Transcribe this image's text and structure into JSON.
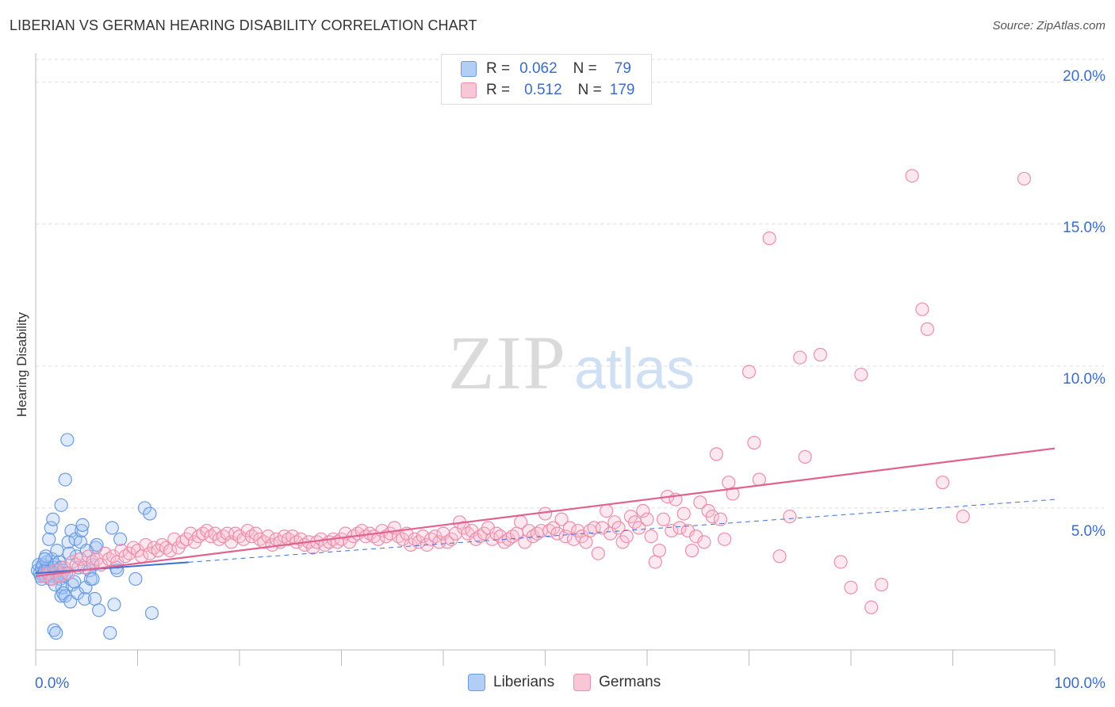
{
  "title": "LIBERIAN VS GERMAN HEARING DISABILITY CORRELATION CHART",
  "source": "Source: ZipAtlas.com",
  "watermark": {
    "zip": "ZIP",
    "atlas": "atlas"
  },
  "legend": {
    "rows": [
      {
        "r_label": "R =",
        "r_value": "0.062",
        "n_label": "N =",
        "n_value": "79",
        "fill": "#b3cef5",
        "stroke": "#6a9ae0"
      },
      {
        "r_label": "R =",
        "r_value": "0.512",
        "n_label": "N =",
        "n_value": "179",
        "fill": "#f9c6d6",
        "stroke": "#ea8fab"
      }
    ]
  },
  "bottom_legend": [
    {
      "label": "Liberians",
      "fill": "#b3cef5",
      "stroke": "#6a9ae0"
    },
    {
      "label": "Germans",
      "fill": "#f9c6d6",
      "stroke": "#ea8fab"
    }
  ],
  "colors": {
    "liberian": "#6a9ae0",
    "liberian_fill": "rgba(160,195,245,0.35)",
    "liberian_line": "#3d6fd4",
    "german": "#ea8fab",
    "german_fill": "rgba(248,190,210,0.35)",
    "german_line": "#e0628e",
    "grid": "#dcdcdc",
    "tick_label": "#3a6cc8"
  },
  "chart_data": {
    "type": "scatter",
    "title": "LIBERIAN VS GERMAN HEARING DISABILITY CORRELATION CHART",
    "xlabel": "",
    "ylabel": "Hearing Disability",
    "xlim": [
      0,
      100
    ],
    "ylim": [
      0,
      20.8
    ],
    "x_tick_labels": [
      "0.0%",
      "100.0%"
    ],
    "y_ticks": [
      5,
      10,
      15,
      20
    ],
    "y_tick_labels": [
      "5.0%",
      "10.0%",
      "15.0%",
      "20.0%"
    ],
    "grid": "horizontal dashed",
    "series": [
      {
        "name": "Liberians",
        "r": 0.062,
        "n": 79,
        "trend": {
          "x": [
            0,
            100
          ],
          "y": [
            2.7,
            5.3
          ]
        },
        "trend_solid_until": 15,
        "points": [
          [
            0.2,
            2.8
          ],
          [
            0.3,
            3.0
          ],
          [
            0.4,
            2.7
          ],
          [
            0.5,
            2.6
          ],
          [
            0.6,
            2.9
          ],
          [
            0.7,
            3.0
          ],
          [
            0.8,
            2.7
          ],
          [
            0.9,
            2.8
          ],
          [
            1.0,
            2.6
          ],
          [
            1.1,
            3.1
          ],
          [
            1.2,
            2.9
          ],
          [
            1.3,
            2.7
          ],
          [
            1.4,
            2.5
          ],
          [
            1.5,
            2.8
          ],
          [
            1.6,
            3.2
          ],
          [
            1.7,
            2.6
          ],
          [
            1.8,
            2.9
          ],
          [
            1.9,
            3.0
          ],
          [
            2.0,
            2.7
          ],
          [
            2.1,
            2.6
          ],
          [
            2.2,
            2.8
          ],
          [
            2.3,
            3.1
          ],
          [
            2.4,
            2.5
          ],
          [
            2.5,
            2.9
          ],
          [
            2.6,
            2.7
          ],
          [
            2.7,
            2.8
          ],
          [
            2.8,
            2.6
          ],
          [
            3.0,
            2.7
          ],
          [
            0.6,
            2.5
          ],
          [
            1.0,
            3.3
          ],
          [
            1.5,
            4.3
          ],
          [
            1.7,
            4.6
          ],
          [
            2.1,
            3.5
          ],
          [
            2.5,
            1.9
          ],
          [
            2.6,
            2.2
          ],
          [
            2.7,
            2.0
          ],
          [
            2.9,
            1.9
          ],
          [
            2.5,
            5.1
          ],
          [
            2.9,
            6.0
          ],
          [
            3.1,
            7.4
          ],
          [
            3.2,
            3.8
          ],
          [
            3.4,
            1.7
          ],
          [
            3.5,
            4.2
          ],
          [
            3.6,
            2.3
          ],
          [
            3.8,
            2.4
          ],
          [
            3.9,
            3.9
          ],
          [
            4.0,
            3.3
          ],
          [
            4.1,
            2.0
          ],
          [
            4.2,
            2.9
          ],
          [
            4.4,
            3.8
          ],
          [
            4.5,
            4.2
          ],
          [
            4.6,
            4.4
          ],
          [
            4.8,
            1.8
          ],
          [
            4.9,
            2.2
          ],
          [
            5.0,
            3.5
          ],
          [
            5.3,
            2.8
          ],
          [
            5.4,
            2.5
          ],
          [
            5.6,
            3.0
          ],
          [
            5.6,
            2.5
          ],
          [
            5.8,
            1.8
          ],
          [
            5.9,
            3.6
          ],
          [
            6.0,
            3.7
          ],
          [
            6.2,
            1.4
          ],
          [
            7.3,
            0.6
          ],
          [
            7.5,
            4.3
          ],
          [
            7.7,
            1.6
          ],
          [
            7.9,
            2.9
          ],
          [
            8.0,
            2.8
          ],
          [
            8.3,
            3.9
          ],
          [
            9.8,
            2.5
          ],
          [
            10.7,
            5.0
          ],
          [
            11.2,
            4.8
          ],
          [
            11.4,
            1.3
          ],
          [
            1.8,
            0.7
          ],
          [
            2.0,
            0.6
          ],
          [
            1.3,
            3.9
          ],
          [
            0.9,
            3.2
          ],
          [
            1.9,
            2.3
          ],
          [
            3.3,
            3.4
          ]
        ]
      },
      {
        "name": "Germans",
        "r": 0.512,
        "n": 179,
        "trend": {
          "x": [
            0,
            100
          ],
          "y": [
            2.6,
            7.1
          ]
        },
        "points": [
          [
            0.8,
            2.6
          ],
          [
            1.2,
            2.7
          ],
          [
            1.6,
            2.5
          ],
          [
            2.0,
            2.8
          ],
          [
            2.4,
            2.6
          ],
          [
            2.8,
            2.9
          ],
          [
            3.2,
            2.7
          ],
          [
            3.6,
            3.1
          ],
          [
            4.0,
            3.0
          ],
          [
            4.4,
            3.2
          ],
          [
            4.8,
            2.9
          ],
          [
            5.2,
            3.3
          ],
          [
            5.6,
            3.1
          ],
          [
            6.0,
            3.2
          ],
          [
            6.4,
            3.0
          ],
          [
            6.8,
            3.4
          ],
          [
            7.2,
            3.2
          ],
          [
            7.6,
            3.3
          ],
          [
            8.0,
            3.1
          ],
          [
            8.4,
            3.5
          ],
          [
            8.8,
            3.3
          ],
          [
            9.2,
            3.4
          ],
          [
            9.6,
            3.6
          ],
          [
            10.0,
            3.5
          ],
          [
            10.4,
            3.3
          ],
          [
            10.8,
            3.7
          ],
          [
            11.2,
            3.4
          ],
          [
            11.6,
            3.6
          ],
          [
            12.0,
            3.5
          ],
          [
            12.4,
            3.7
          ],
          [
            12.8,
            3.6
          ],
          [
            13.2,
            3.5
          ],
          [
            13.6,
            3.9
          ],
          [
            14.0,
            3.6
          ],
          [
            14.4,
            3.8
          ],
          [
            14.8,
            3.9
          ],
          [
            15.2,
            4.1
          ],
          [
            15.6,
            3.8
          ],
          [
            16.0,
            4.0
          ],
          [
            16.4,
            4.1
          ],
          [
            16.8,
            4.2
          ],
          [
            17.2,
            4.0
          ],
          [
            17.6,
            4.1
          ],
          [
            18.0,
            3.9
          ],
          [
            18.4,
            4.0
          ],
          [
            18.8,
            4.1
          ],
          [
            19.2,
            3.8
          ],
          [
            19.6,
            4.1
          ],
          [
            20.0,
            4.0
          ],
          [
            20.4,
            3.9
          ],
          [
            20.8,
            4.2
          ],
          [
            21.2,
            4.0
          ],
          [
            21.6,
            4.1
          ],
          [
            22.0,
            3.9
          ],
          [
            22.4,
            3.8
          ],
          [
            22.8,
            4.0
          ],
          [
            23.2,
            3.7
          ],
          [
            23.6,
            3.9
          ],
          [
            24.0,
            3.8
          ],
          [
            24.4,
            4.0
          ],
          [
            24.8,
            3.9
          ],
          [
            25.2,
            4.0
          ],
          [
            25.6,
            3.8
          ],
          [
            26.0,
            3.9
          ],
          [
            26.4,
            3.7
          ],
          [
            26.8,
            3.8
          ],
          [
            27.2,
            3.6
          ],
          [
            27.6,
            3.8
          ],
          [
            28.0,
            3.9
          ],
          [
            28.4,
            3.7
          ],
          [
            28.8,
            3.8
          ],
          [
            29.2,
            3.9
          ],
          [
            29.6,
            3.8
          ],
          [
            30.0,
            3.9
          ],
          [
            30.4,
            4.1
          ],
          [
            30.8,
            3.8
          ],
          [
            31.2,
            4.0
          ],
          [
            31.6,
            4.1
          ],
          [
            32.0,
            4.2
          ],
          [
            32.4,
            4.0
          ],
          [
            32.8,
            4.1
          ],
          [
            33.2,
            4.0
          ],
          [
            33.6,
            3.9
          ],
          [
            34.0,
            4.2
          ],
          [
            34.4,
            4.0
          ],
          [
            34.8,
            4.1
          ],
          [
            35.2,
            4.3
          ],
          [
            35.6,
            4.0
          ],
          [
            36.0,
            3.9
          ],
          [
            36.4,
            4.1
          ],
          [
            36.8,
            3.7
          ],
          [
            37.2,
            3.9
          ],
          [
            37.6,
            3.8
          ],
          [
            38.0,
            4.0
          ],
          [
            38.4,
            3.7
          ],
          [
            38.8,
            3.9
          ],
          [
            39.2,
            4.0
          ],
          [
            39.6,
            3.8
          ],
          [
            40.0,
            4.1
          ],
          [
            40.4,
            3.8
          ],
          [
            40.8,
            3.9
          ],
          [
            41.2,
            4.1
          ],
          [
            41.6,
            4.5
          ],
          [
            42.0,
            4.3
          ],
          [
            42.4,
            4.1
          ],
          [
            42.8,
            4.2
          ],
          [
            43.2,
            3.9
          ],
          [
            43.6,
            4.0
          ],
          [
            44.0,
            4.1
          ],
          [
            44.4,
            4.3
          ],
          [
            44.8,
            3.9
          ],
          [
            45.2,
            4.1
          ],
          [
            45.6,
            4.0
          ],
          [
            46.0,
            3.8
          ],
          [
            46.4,
            3.9
          ],
          [
            46.8,
            4.0
          ],
          [
            47.2,
            4.1
          ],
          [
            47.6,
            4.5
          ],
          [
            48.0,
            3.8
          ],
          [
            48.4,
            4.2
          ],
          [
            48.8,
            4.0
          ],
          [
            49.2,
            4.1
          ],
          [
            49.6,
            4.2
          ],
          [
            50.0,
            4.8
          ],
          [
            50.4,
            4.2
          ],
          [
            50.8,
            4.3
          ],
          [
            51.2,
            4.1
          ],
          [
            51.6,
            4.6
          ],
          [
            52.0,
            4.0
          ],
          [
            52.4,
            4.3
          ],
          [
            52.8,
            3.9
          ],
          [
            53.2,
            4.2
          ],
          [
            53.6,
            4.0
          ],
          [
            54.0,
            3.8
          ],
          [
            54.4,
            4.2
          ],
          [
            54.8,
            4.3
          ],
          [
            55.2,
            3.4
          ],
          [
            55.6,
            4.3
          ],
          [
            56.0,
            4.9
          ],
          [
            56.4,
            4.1
          ],
          [
            56.8,
            4.5
          ],
          [
            57.2,
            4.3
          ],
          [
            57.6,
            3.8
          ],
          [
            58.0,
            4.0
          ],
          [
            58.4,
            4.7
          ],
          [
            58.8,
            4.5
          ],
          [
            59.2,
            4.3
          ],
          [
            59.6,
            4.9
          ],
          [
            60.0,
            4.6
          ],
          [
            60.4,
            4.0
          ],
          [
            60.8,
            3.1
          ],
          [
            61.2,
            3.5
          ],
          [
            61.6,
            4.6
          ],
          [
            62.0,
            5.4
          ],
          [
            62.4,
            4.2
          ],
          [
            62.8,
            5.3
          ],
          [
            63.2,
            4.3
          ],
          [
            63.6,
            4.8
          ],
          [
            64.0,
            4.2
          ],
          [
            64.4,
            3.5
          ],
          [
            64.8,
            4.0
          ],
          [
            65.2,
            5.2
          ],
          [
            65.6,
            3.8
          ],
          [
            66.0,
            4.9
          ],
          [
            66.4,
            4.7
          ],
          [
            66.8,
            6.9
          ],
          [
            67.2,
            4.6
          ],
          [
            67.6,
            3.9
          ],
          [
            68.0,
            5.9
          ],
          [
            68.4,
            5.5
          ],
          [
            70.0,
            9.8
          ],
          [
            70.5,
            7.3
          ],
          [
            71.0,
            6.0
          ],
          [
            72.0,
            14.5
          ],
          [
            73.0,
            3.3
          ],
          [
            74.0,
            4.7
          ],
          [
            75.0,
            10.3
          ],
          [
            75.5,
            6.8
          ],
          [
            77.0,
            10.4
          ],
          [
            79.0,
            3.1
          ],
          [
            80.0,
            2.2
          ],
          [
            81.0,
            9.7
          ],
          [
            82.0,
            1.5
          ],
          [
            83.0,
            2.3
          ],
          [
            86.0,
            16.7
          ],
          [
            87.0,
            12.0
          ],
          [
            87.5,
            11.3
          ],
          [
            89.0,
            5.9
          ],
          [
            91.0,
            4.7
          ],
          [
            97.0,
            16.6
          ]
        ]
      }
    ]
  }
}
